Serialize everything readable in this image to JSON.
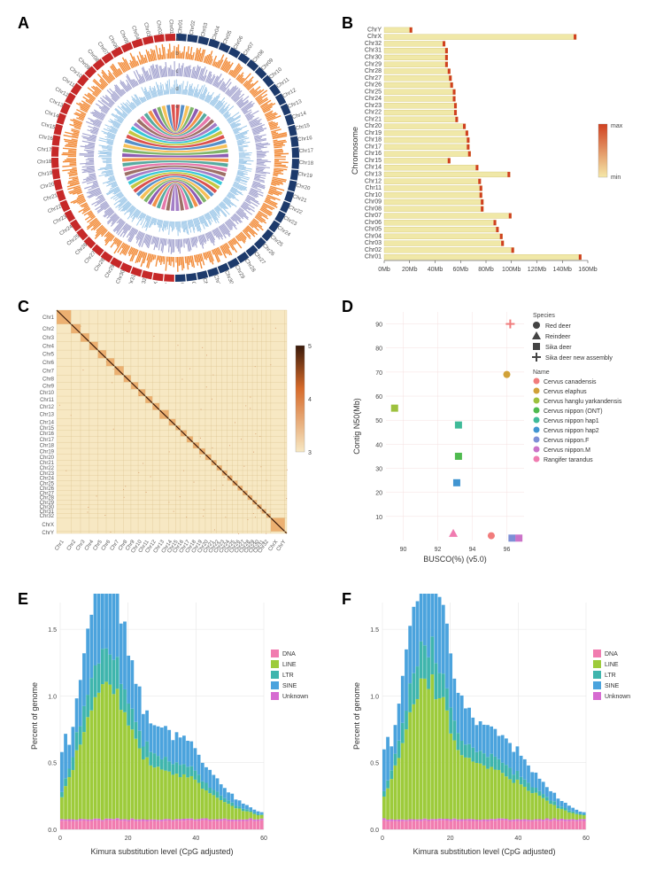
{
  "labels": {
    "A": "A",
    "B": "B",
    "C": "C",
    "D": "D",
    "E": "E",
    "F": "F"
  },
  "colors": {
    "navy": "#1d3a6b",
    "red": "#c62828",
    "orange": "#f28c3a",
    "heat_orange": "#f5a15a",
    "lavender": "#a7a7d1",
    "light_blue": "#9cc7e8",
    "blue": "#5c93c8",
    "ribbon": [
      "#d6322f",
      "#3a7cbf",
      "#f4b53b",
      "#6aa84f",
      "#7a3fa5",
      "#f07e2a",
      "#3a9c91",
      "#e0619c",
      "#8c564b",
      "#9467bd",
      "#17becf",
      "#bcbd22"
    ],
    "bar_fill": "#f0e8a8",
    "bar_end": "#d04020",
    "heatmap_low": "#f7e8c3",
    "heatmap_high": "#3a1a0a",
    "heatmap_max": "#a61b1b",
    "gray_grid": "#e7e7e7",
    "pink_grid": "#f5e0e0",
    "dna": "#f17cb0",
    "line": "#9dcb3b",
    "ltr": "#3fb5ad",
    "sine": "#4ba3dd",
    "unknown": "#d66bd1"
  },
  "panelA": {
    "chromosomes": [
      "Chr01",
      "Chr02",
      "Chr03",
      "Chr04",
      "Chr05",
      "Chr06",
      "Chr07",
      "Chr08",
      "Chr09",
      "Chr10",
      "Chr11",
      "Chr12",
      "Chr13",
      "Chr14",
      "Chr15",
      "Chr16",
      "Chr17",
      "Chr18",
      "Chr19",
      "Chr20",
      "Chr21",
      "Chr22",
      "Chr23",
      "Chr24",
      "Chr25",
      "Chr26",
      "Chr27",
      "Chr28",
      "Chr29",
      "Chr30",
      "Chr31",
      "Chr32",
      "ChrX",
      "ChrY"
    ],
    "sublabels": [
      "a",
      "b",
      "c",
      "d",
      "e"
    ]
  },
  "panelB": {
    "xlabel": "",
    "ylabel": "Chromosome",
    "xticks": [
      "0Mb",
      "20Mb",
      "40Mb",
      "60Mb",
      "80Mb",
      "100Mb",
      "120Mb",
      "140Mb",
      "160Mb"
    ],
    "xtick_vals": [
      0,
      20,
      40,
      60,
      80,
      100,
      120,
      140,
      160
    ],
    "categories": [
      "Chr01",
      "Chr02",
      "Chr03",
      "Chr04",
      "Chr05",
      "Chr06",
      "Chr07",
      "Chr08",
      "Chr09",
      "Chr10",
      "Chr11",
      "Chr12",
      "Chr13",
      "Chr14",
      "Chr15",
      "Chr16",
      "Chr17",
      "Chr18",
      "Chr19",
      "Chr20",
      "Chr21",
      "Chr22",
      "Chr23",
      "Chr24",
      "Chr25",
      "Chr26",
      "Chr27",
      "Chr28",
      "Chr29",
      "Chr30",
      "Chr31",
      "Chr32",
      "ChrX",
      "ChrY"
    ],
    "values": [
      155,
      102,
      94,
      93,
      90,
      88,
      100,
      78,
      78,
      77,
      77,
      76,
      99,
      74,
      52,
      68,
      67,
      67,
      66,
      64,
      58,
      57,
      57,
      56,
      56,
      54,
      53,
      52,
      50,
      50,
      50,
      48,
      151,
      22
    ],
    "legend": {
      "title": "",
      "top": "max",
      "bottom": "min"
    }
  },
  "panelC": {
    "chroms": [
      "Chr1",
      "Chr2",
      "Chr3",
      "Chr4",
      "Chr5",
      "Chr6",
      "Chr7",
      "Chr8",
      "Chr9",
      "Chr10",
      "Chr11",
      "Chr12",
      "Chr13",
      "Chr14",
      "Chr15",
      "Chr16",
      "Chr17",
      "Chr18",
      "Chr19",
      "Chr20",
      "Chr21",
      "Chr22",
      "Chr23",
      "Chr24",
      "Chr25",
      "Chr26",
      "Chr27",
      "Chr28",
      "Chr29",
      "Chr30",
      "Chr31",
      "Chr32",
      "ChrX",
      "ChrY"
    ],
    "scale": [
      3,
      4,
      5
    ]
  },
  "panelD": {
    "xlabel": "BUSCO(%) (v5.0)",
    "ylabel": "Contig N50(Mb)",
    "xticks": [
      90,
      92,
      94,
      96
    ],
    "yticks": [
      10,
      20,
      30,
      40,
      50,
      60,
      70,
      80,
      90
    ],
    "xlim": [
      89,
      97
    ],
    "ylim": [
      0,
      95
    ],
    "species_legend": {
      "title": "Species",
      "items": [
        {
          "shape": "circle",
          "label": "Red deer"
        },
        {
          "shape": "triangle",
          "label": "Reindeer"
        },
        {
          "shape": "square",
          "label": "Sika deer"
        },
        {
          "shape": "plus",
          "label": "Sika deer new assembly"
        }
      ]
    },
    "name_legend": {
      "title": "Name",
      "items": [
        {
          "color": "#f17c7c",
          "label": "Cervus canadensis"
        },
        {
          "color": "#d1a138",
          "label": "Cervus elaphus"
        },
        {
          "color": "#9dc13e",
          "label": "Cervus hanglu yarkandensis"
        },
        {
          "color": "#4fba4f",
          "label": "Cervus nippon (ONT)"
        },
        {
          "color": "#3fba98",
          "label": "Cervus nippon hap1"
        },
        {
          "color": "#4195d1",
          "label": "Cervus nippon hap2"
        },
        {
          "color": "#7d8fd6",
          "label": "Cervus nippon.F"
        },
        {
          "color": "#cb73c8",
          "label": "Cervus nippon.M"
        },
        {
          "color": "#f07cb0",
          "label": "Rangifer tarandus"
        }
      ]
    },
    "points": [
      {
        "x": 96.2,
        "y": 90,
        "shape": "plus",
        "color": "#f17c7c"
      },
      {
        "x": 96.0,
        "y": 69,
        "shape": "circle",
        "color": "#d1a138"
      },
      {
        "x": 89.5,
        "y": 55,
        "shape": "square",
        "color": "#9dc13e"
      },
      {
        "x": 93.2,
        "y": 48,
        "shape": "square",
        "color": "#3fba98"
      },
      {
        "x": 93.2,
        "y": 35,
        "shape": "square",
        "color": "#4fba4f"
      },
      {
        "x": 93.1,
        "y": 24,
        "shape": "square",
        "color": "#4195d1"
      },
      {
        "x": 92.9,
        "y": 3,
        "shape": "triangle",
        "color": "#f07cb0"
      },
      {
        "x": 95.1,
        "y": 2,
        "shape": "circle",
        "color": "#f17c7c"
      },
      {
        "x": 96.3,
        "y": 1,
        "shape": "square",
        "color": "#7d8fd6"
      },
      {
        "x": 96.7,
        "y": 1,
        "shape": "square",
        "color": "#cb73c8"
      }
    ]
  },
  "panelE": {
    "xlabel": "Kimura substitution level (CpG adjusted)",
    "ylabel": "Percent of genome",
    "xticks": [
      0,
      20,
      40,
      60
    ],
    "yticks": [
      0,
      0.5,
      1.0,
      1.5
    ],
    "ylim": [
      0,
      1.7
    ],
    "n_bins": 55,
    "legend": [
      {
        "color": "#f17cb0",
        "label": "DNA"
      },
      {
        "color": "#9dcb3b",
        "label": "LINE"
      },
      {
        "color": "#3fb5ad",
        "label": "LTR"
      },
      {
        "color": "#4ba3dd",
        "label": "SINE"
      },
      {
        "color": "#d66bd1",
        "label": "Unknown"
      }
    ]
  },
  "panelF": {
    "xlabel": "Kimura substitution level (CpG adjusted)",
    "ylabel": "Percent of genome",
    "xticks": [
      0,
      20,
      40,
      60
    ],
    "yticks": [
      0,
      0.5,
      1.0,
      1.5
    ],
    "ylim": [
      0,
      1.7
    ],
    "n_bins": 55,
    "legend": [
      {
        "color": "#f17cb0",
        "label": "DNA"
      },
      {
        "color": "#9dcb3b",
        "label": "LINE"
      },
      {
        "color": "#3fb5ad",
        "label": "LTR"
      },
      {
        "color": "#4ba3dd",
        "label": "SINE"
      },
      {
        "color": "#d66bd1",
        "label": "Unknown"
      }
    ]
  }
}
